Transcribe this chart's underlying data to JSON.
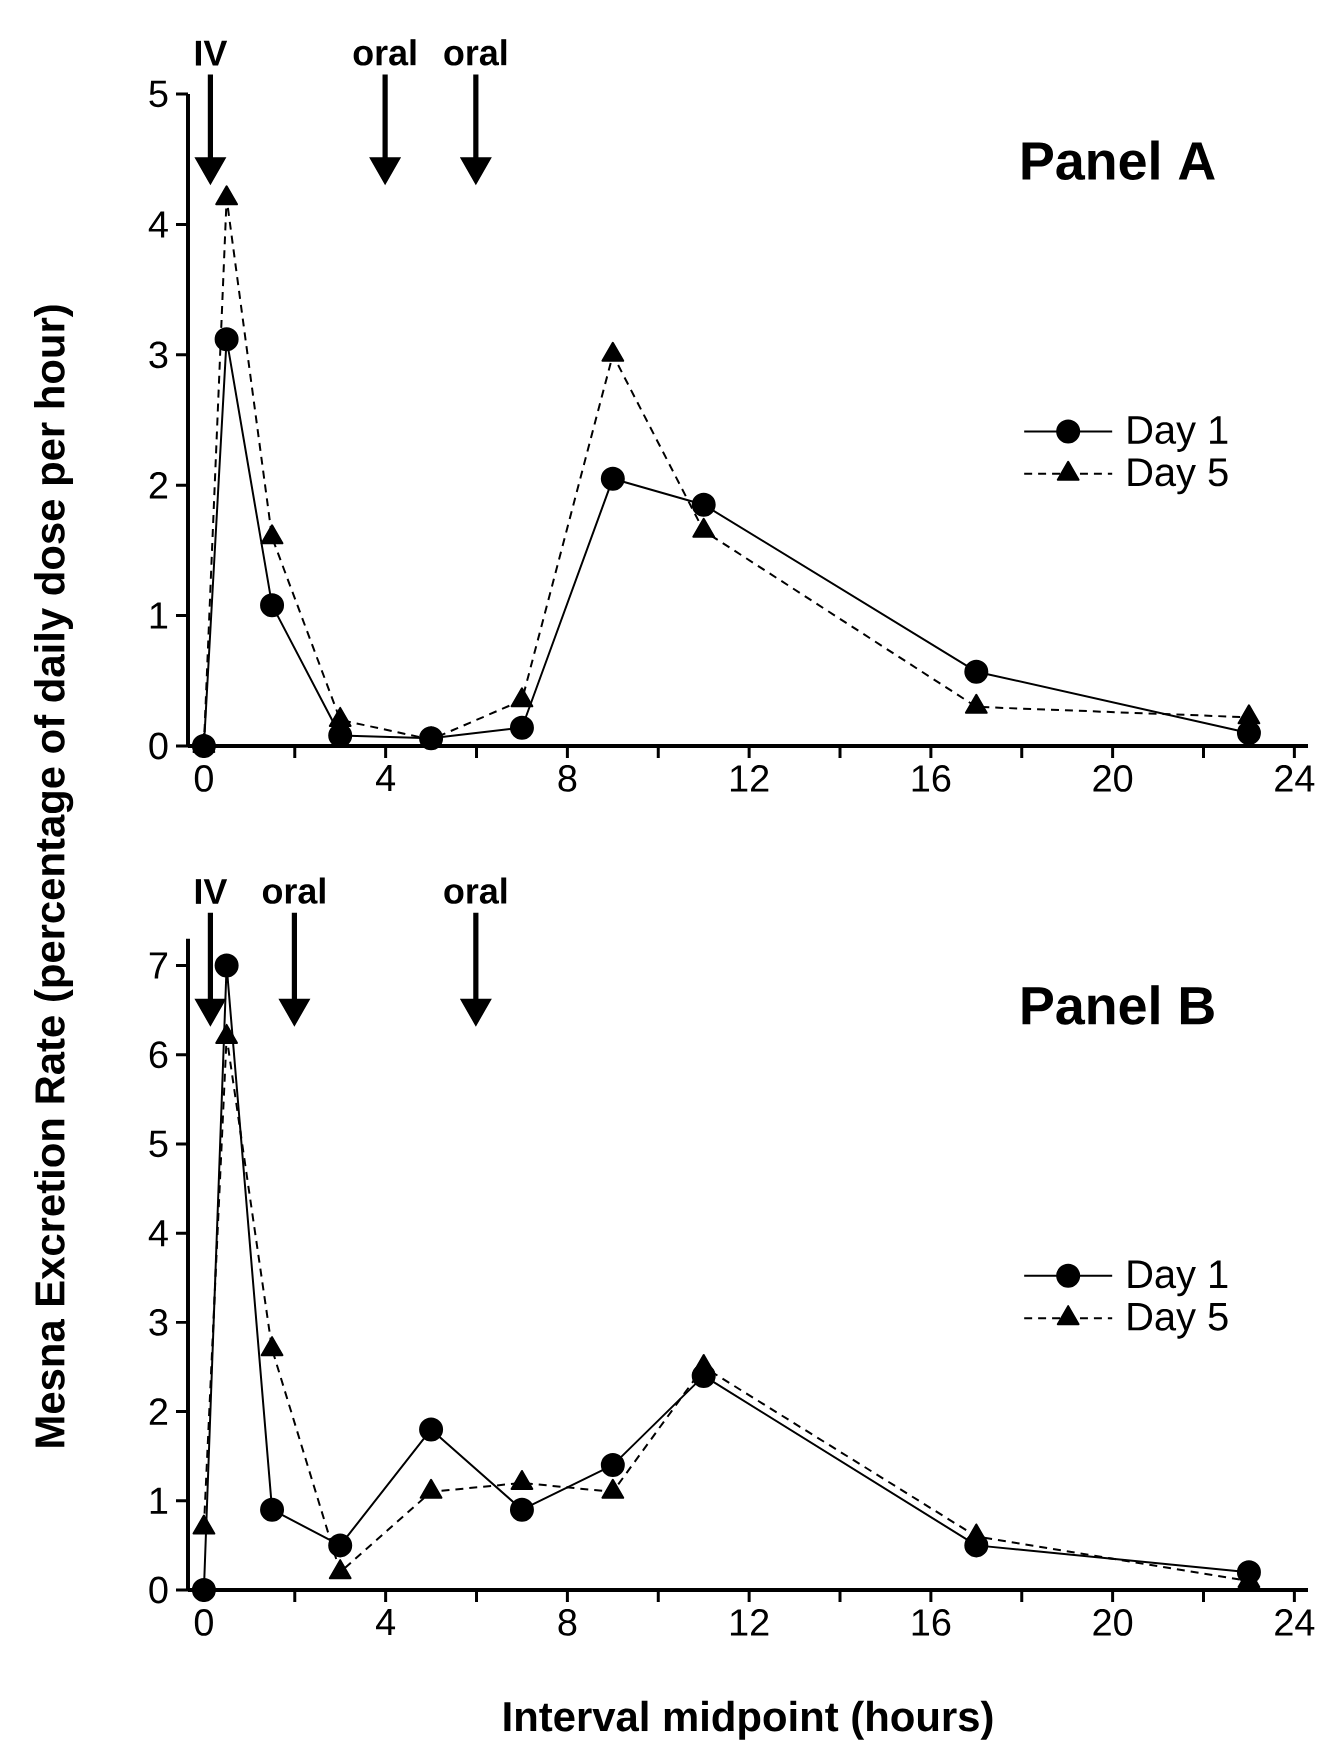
{
  "chart_data": [
    {
      "type": "line",
      "title": "Panel A",
      "ylabel": "Mesna Excretion Rate (percentage of daily dose per hour)",
      "annotations": [
        "IV",
        "oral",
        "oral"
      ],
      "x": [
        0,
        0.5,
        1.5,
        3,
        5,
        7,
        9,
        11,
        17,
        23
      ],
      "series": [
        {
          "name": "Day 1",
          "color": "#000000",
          "marker": "circle",
          "line_style": "solid",
          "values": [
            0,
            3.12,
            1.08,
            0.08,
            0.06,
            0.14,
            2.05,
            1.85,
            0.57,
            0.1
          ]
        },
        {
          "name": "Day 5",
          "color": "#000000",
          "marker": "triangle",
          "line_style": "dashed",
          "values": [
            0,
            4.2,
            1.6,
            0.2,
            0.05,
            0.35,
            3.0,
            1.65,
            0.3,
            0.22
          ]
        }
      ],
      "xlim": [
        -0.35,
        24.3
      ],
      "ylim": [
        0,
        5
      ],
      "xticks": [
        0,
        {
          "value": 2,
          "label": null
        },
        4,
        {
          "value": 6,
          "label": null
        },
        8,
        {
          "value": 10,
          "label": null
        },
        12,
        {
          "value": 14,
          "label": null
        },
        16,
        {
          "value": 18,
          "label": null
        },
        20,
        {
          "value": 22,
          "label": null
        },
        24
      ],
      "yticks": [
        0,
        1,
        2,
        3,
        4,
        5
      ],
      "grid": false,
      "legend": "right"
    },
    {
      "type": "line",
      "title": "Panel B",
      "xlabel": "Interval midpoint (hours)",
      "annotations": [
        "IV",
        "oral",
        "oral"
      ],
      "x": [
        0,
        0.5,
        1.5,
        3,
        5,
        7,
        9,
        11,
        17,
        23
      ],
      "series": [
        {
          "name": "Day 1",
          "color": "#000000",
          "marker": "circle",
          "line_style": "solid",
          "values": [
            0,
            7.0,
            0.9,
            0.5,
            1.8,
            0.9,
            1.4,
            2.4,
            0.5,
            0.2
          ]
        },
        {
          "name": "Day 5",
          "color": "#000000",
          "marker": "triangle",
          "line_style": "dashed",
          "values": [
            0.7,
            6.2,
            2.7,
            0.2,
            1.1,
            1.2,
            1.1,
            2.5,
            0.6,
            0.1
          ]
        }
      ],
      "xlim": [
        -0.35,
        24.3
      ],
      "ylim": [
        0,
        7.3
      ],
      "xticks": [
        0,
        {
          "value": 2,
          "label": null
        },
        4,
        {
          "value": 6,
          "label": null
        },
        8,
        {
          "value": 10,
          "label": null
        },
        12,
        {
          "value": 14,
          "label": null
        },
        16,
        {
          "value": 18,
          "label": null
        },
        20,
        {
          "value": 22,
          "label": null
        },
        24
      ],
      "yticks": [
        0,
        1,
        2,
        3,
        4,
        5,
        6,
        7
      ],
      "grid": false,
      "legend": "right"
    }
  ]
}
